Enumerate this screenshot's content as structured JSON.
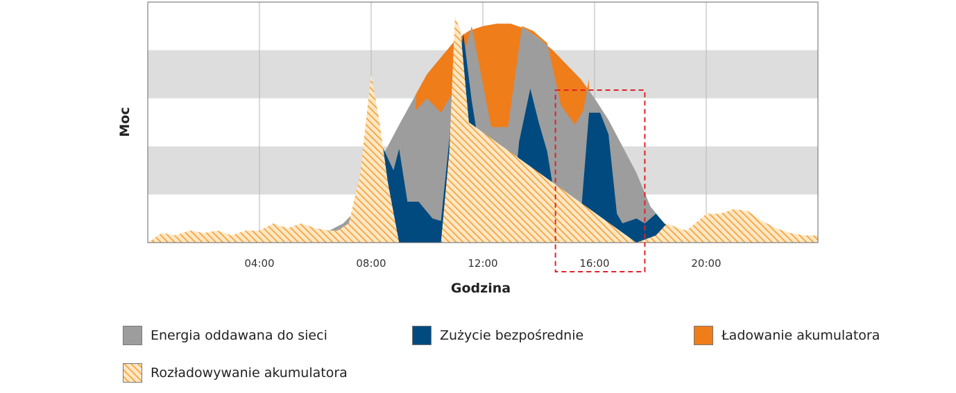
{
  "chart_data": {
    "type": "area",
    "xlabel": "Godzina",
    "ylabel": "Moc",
    "x_ticks": [
      "04:00",
      "08:00",
      "12:00",
      "16:00",
      "20:00"
    ],
    "x_tick_hours": [
      4,
      8,
      12,
      16,
      20
    ],
    "xlim": [
      0,
      24
    ],
    "ylim": [
      0,
      100
    ],
    "grid": true,
    "background_bands": [
      [
        20,
        40
      ],
      [
        60,
        80
      ]
    ],
    "highlight_window": [
      14.6,
      17.8
    ],
    "legend_position": "bottom",
    "series": [
      {
        "name": "Energia oddawana do sieci",
        "key": "grid",
        "color": "#9d9d9d",
        "x": [
          4.7,
          5.5,
          6.5,
          7.0,
          7.5,
          8.0,
          9.0,
          10.0,
          11.0,
          11.5,
          12.0,
          12.5,
          13.0,
          13.5,
          14.0,
          14.5,
          15.0,
          15.5,
          16.0,
          16.5,
          17.0,
          17.5,
          18.0,
          18.5,
          19.0,
          19.5,
          20.0
        ],
        "y": [
          0,
          2,
          5,
          8,
          14,
          27,
          49,
          70,
          84,
          88,
          90,
          91,
          91,
          89,
          85,
          80,
          74,
          68,
          60,
          51,
          40,
          29,
          15,
          8,
          4,
          2,
          0
        ]
      },
      {
        "name": "Zużycie bezpośrednie",
        "key": "direct",
        "color": "#004a7f",
        "x": [
          4.5,
          5.5,
          6.5,
          7.0,
          7.5,
          8.0,
          8.4,
          8.8,
          9.0,
          9.3,
          9.7,
          10.2,
          10.5,
          10.9,
          11.3,
          11.6,
          12.0,
          12.3,
          12.6,
          13.0,
          13.3,
          13.7,
          14.0,
          14.3,
          14.6,
          15.0,
          15.5,
          15.8,
          16.2,
          16.5,
          16.8,
          17.0,
          17.5,
          17.8,
          18.2,
          18.5,
          19.0,
          19.5,
          20.0
        ],
        "y": [
          0,
          2,
          4,
          3,
          6,
          28,
          40,
          30,
          39,
          17,
          17,
          10,
          9,
          54,
          87,
          59,
          30,
          10,
          7,
          6,
          42,
          64,
          50,
          38,
          17,
          10,
          10,
          54,
          54,
          45,
          12,
          8,
          10,
          8,
          12,
          8,
          4,
          2,
          0
        ]
      },
      {
        "name": "Ładowanie akumulatora",
        "key": "charge",
        "color": "#ef7d1a",
        "x": [
          9.6,
          10.0,
          10.5,
          11.0,
          11.6,
          12.3,
          12.9,
          13.4,
          13.8,
          14.3,
          14.8,
          15.3,
          15.6,
          15.8
        ],
        "y": [
          55,
          60,
          54,
          64,
          90,
          48,
          48,
          90,
          88,
          83,
          57,
          49,
          55,
          68
        ]
      },
      {
        "name": "Rozładowywanie akumulatora",
        "key": "discharge",
        "color": "#f7b25a",
        "pattern": "hatched",
        "x": [
          0,
          0.5,
          1.0,
          1.5,
          2.0,
          2.5,
          3.0,
          3.5,
          4.0,
          4.5,
          5.0,
          5.5,
          6.0,
          6.5,
          6.8,
          7.2,
          7.6,
          8.0,
          8.3,
          8.6,
          9.0,
          10.5,
          10.8,
          11.0,
          11.2,
          11.5,
          17.5,
          18.2,
          18.6,
          19.0,
          19.3,
          19.6,
          20.0,
          20.5,
          21.0,
          21.5,
          22.0,
          22.5,
          23.0,
          23.5,
          24.0
        ],
        "y": [
          0,
          4,
          3,
          5,
          4,
          5,
          3,
          5,
          5,
          8,
          6,
          8,
          6,
          5,
          5,
          8,
          28,
          70,
          50,
          25,
          0,
          0,
          38,
          94,
          88,
          50,
          0,
          3,
          8,
          6,
          5,
          8,
          12,
          12,
          14,
          13,
          9,
          6,
          4,
          3,
          3
        ]
      }
    ]
  },
  "legend": [
    {
      "key": "grid",
      "label": "Energia oddawana do sieci"
    },
    {
      "key": "direct",
      "label": "Zużycie bezpośrednie"
    },
    {
      "key": "charge",
      "label": "Ładowanie akumulatora"
    },
    {
      "key": "discharge",
      "label": "Rozładowywanie akumulatora"
    }
  ]
}
